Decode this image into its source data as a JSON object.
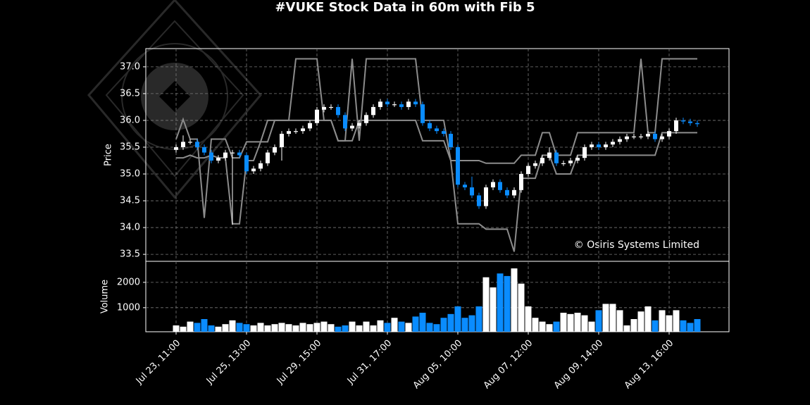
{
  "chart_data": {
    "type": "candlestick",
    "title": "#VUKE Stock Data in 60m with Fib 5",
    "ylabel": "Price",
    "annotation": "© Osiris Systems Limited",
    "up_color": "#ffffff",
    "down_color": "#0a8cff",
    "grid": true,
    "xlim": [
      -4.3,
      78.5
    ],
    "xticks": [
      {
        "value": 0,
        "label": "Jul 23, 11:00"
      },
      {
        "value": 10,
        "label": "Jul 25, 13:00"
      },
      {
        "value": 20,
        "label": "Jul 29, 15:00"
      },
      {
        "value": 30,
        "label": "Jul 31, 17:00"
      },
      {
        "value": 40,
        "label": "Aug 05, 10:00"
      },
      {
        "value": 50,
        "label": "Aug 07, 12:00"
      },
      {
        "value": 60,
        "label": "Aug 09, 14:00"
      },
      {
        "value": 70,
        "label": "Aug 13, 16:00"
      }
    ],
    "ylim": [
      33.37,
      37.34
    ],
    "yticks": [
      33.5,
      {
        "value": 34,
        "label": "34.0"
      },
      34.5,
      {
        "value": 35,
        "label": "35.0"
      },
      35.5,
      {
        "value": 36,
        "label": "36.0"
      },
      36.5,
      {
        "value": 37,
        "label": "37.0"
      }
    ],
    "open": [
      35.45,
      35.5,
      35.6,
      35.6,
      35.5,
      35.4,
      35.25,
      35.3,
      35.4,
      35.4,
      35.35,
      35.05,
      35.1,
      35.2,
      35.4,
      35.5,
      35.75,
      35.8,
      35.8,
      35.85,
      35.95,
      36.2,
      36.25,
      36.25,
      36.1,
      35.85,
      35.9,
      35.95,
      36.1,
      36.25,
      36.35,
      36.3,
      36.3,
      36.25,
      36.35,
      36.3,
      35.95,
      35.85,
      35.8,
      35.75,
      35.5,
      34.8,
      34.75,
      34.6,
      34.4,
      34.75,
      34.85,
      34.7,
      34.6,
      34.7,
      35.0,
      35.15,
      35.2,
      35.3,
      35.4,
      35.2,
      35.2,
      35.25,
      35.3,
      35.5,
      35.55,
      35.5,
      35.55,
      35.6,
      35.65,
      35.7,
      35.7,
      35.7,
      35.75,
      35.65,
      35.7,
      35.8,
      36.0,
      35.98,
      35.95
    ],
    "high": [
      35.55,
      35.72,
      35.65,
      35.65,
      35.55,
      35.45,
      35.35,
      35.45,
      35.45,
      35.45,
      35.4,
      35.15,
      35.25,
      35.45,
      35.55,
      35.8,
      35.85,
      35.85,
      35.9,
      36.0,
      36.25,
      36.3,
      36.3,
      36.3,
      36.15,
      35.95,
      36.0,
      36.15,
      36.3,
      36.4,
      36.4,
      36.35,
      36.35,
      36.4,
      36.4,
      36.35,
      36.0,
      35.9,
      35.85,
      35.8,
      35.55,
      34.85,
      34.95,
      34.65,
      34.8,
      34.9,
      34.9,
      34.75,
      34.75,
      35.05,
      35.2,
      35.25,
      35.35,
      35.5,
      35.45,
      35.25,
      35.3,
      35.35,
      35.55,
      35.6,
      35.6,
      35.6,
      35.65,
      35.7,
      35.75,
      35.75,
      35.75,
      35.8,
      35.8,
      35.75,
      35.85,
      36.05,
      36.05,
      36.03,
      36.0
    ],
    "low": [
      35.4,
      35.45,
      35.55,
      35.45,
      35.35,
      35.2,
      35.2,
      35.25,
      34.05,
      35.3,
      35.0,
      35.0,
      35.05,
      35.15,
      35.35,
      35.25,
      35.7,
      35.75,
      35.75,
      35.8,
      35.9,
      36.15,
      36.2,
      36.05,
      35.8,
      35.8,
      35.85,
      35.9,
      36.05,
      36.2,
      36.25,
      36.25,
      36.2,
      36.2,
      36.25,
      35.9,
      35.8,
      35.75,
      35.7,
      35.45,
      34.75,
      34.7,
      34.55,
      34.35,
      34.35,
      34.7,
      34.65,
      34.55,
      34.55,
      34.65,
      34.95,
      35.1,
      35.15,
      35.25,
      35.15,
      35.15,
      35.15,
      35.2,
      35.25,
      35.45,
      35.45,
      35.45,
      35.5,
      35.55,
      35.6,
      35.65,
      35.65,
      35.65,
      35.6,
      35.6,
      35.65,
      35.75,
      35.93,
      35.9,
      35.88
    ],
    "close": [
      35.5,
      35.6,
      35.6,
      35.5,
      35.4,
      35.25,
      35.3,
      35.4,
      35.4,
      35.35,
      35.05,
      35.1,
      35.2,
      35.4,
      35.5,
      35.75,
      35.8,
      35.8,
      35.85,
      35.95,
      36.2,
      36.25,
      36.25,
      36.1,
      35.85,
      35.9,
      35.95,
      36.1,
      36.25,
      36.35,
      36.3,
      36.3,
      36.25,
      36.35,
      36.3,
      35.95,
      35.85,
      35.8,
      35.75,
      35.5,
      34.8,
      34.75,
      34.6,
      34.4,
      34.75,
      34.85,
      34.7,
      34.6,
      34.7,
      35.0,
      35.15,
      35.2,
      35.3,
      35.4,
      35.2,
      35.2,
      35.25,
      35.3,
      35.5,
      35.55,
      35.5,
      35.55,
      35.6,
      35.65,
      35.7,
      35.7,
      35.7,
      35.75,
      35.65,
      35.7,
      35.8,
      36.0,
      35.98,
      35.95,
      35.93
    ],
    "series": [
      {
        "color": "#8c8c8c",
        "values": [
          35.65,
          36.02,
          35.65,
          35.65,
          34.18,
          35.65,
          35.65,
          35.65,
          35.3,
          35.3,
          35.6,
          35.6,
          35.6,
          36.0,
          36.0,
          36.0,
          36.0,
          37.15,
          37.15,
          37.15,
          37.15,
          36.0,
          36.0,
          35.62,
          35.62,
          37.15,
          35.62,
          37.15,
          37.15,
          37.15,
          37.15,
          37.15,
          37.15,
          37.15,
          37.15,
          36.0,
          36.0,
          36.0,
          36.0,
          35.25,
          35.25,
          35.25,
          35.25,
          35.25,
          35.2,
          35.2,
          35.2,
          35.2,
          35.2,
          35.35,
          35.35,
          35.35,
          35.77,
          35.77,
          35.35,
          35.35,
          35.35,
          35.77,
          35.77,
          35.77,
          35.77,
          35.77,
          35.77,
          35.77,
          35.77,
          35.77,
          37.15,
          35.77,
          35.77,
          37.15,
          37.15,
          37.15,
          37.15,
          37.15,
          37.15
        ]
      },
      {
        "color": "#8c8c8c",
        "values": [
          35.3,
          35.3,
          35.35,
          35.3,
          35.3,
          35.35,
          35.3,
          35.3,
          34.07,
          34.07,
          35.25,
          35.25,
          35.6,
          35.6,
          36.0,
          36.0,
          36.0,
          36.0,
          36.0,
          36.0,
          36.0,
          36.0,
          36.0,
          35.62,
          35.62,
          35.62,
          36.0,
          36.0,
          36.0,
          36.0,
          36.0,
          36.0,
          36.0,
          36.0,
          36.0,
          35.62,
          35.62,
          35.62,
          35.62,
          35.25,
          34.07,
          34.07,
          34.07,
          34.07,
          33.97,
          33.97,
          33.97,
          33.97,
          33.55,
          34.92,
          34.92,
          34.92,
          35.35,
          35.35,
          35.0,
          35.0,
          35.0,
          35.35,
          35.35,
          35.35,
          35.35,
          35.35,
          35.35,
          35.35,
          35.35,
          35.35,
          35.35,
          35.35,
          35.35,
          35.77,
          35.77,
          35.77,
          35.77,
          35.77,
          35.77
        ]
      }
    ],
    "volume": {
      "ylabel": "Volume",
      "ylim": [
        50,
        2830
      ],
      "yticks": [
        1000,
        2000
      ],
      "values": [
        300,
        250,
        450,
        400,
        550,
        300,
        250,
        350,
        500,
        400,
        350,
        300,
        400,
        300,
        350,
        400,
        350,
        300,
        400,
        350,
        400,
        450,
        350,
        250,
        300,
        450,
        300,
        450,
        300,
        500,
        400,
        600,
        450,
        400,
        650,
        800,
        400,
        350,
        600,
        750,
        1050,
        600,
        700,
        1050,
        2200,
        1800,
        2350,
        2250,
        2550,
        1950,
        1050,
        600,
        450,
        350,
        450,
        800,
        750,
        800,
        700,
        450,
        900,
        1150,
        1150,
        900,
        300,
        550,
        850,
        1050,
        500,
        900,
        700,
        900,
        500,
        400,
        550
      ]
    }
  }
}
